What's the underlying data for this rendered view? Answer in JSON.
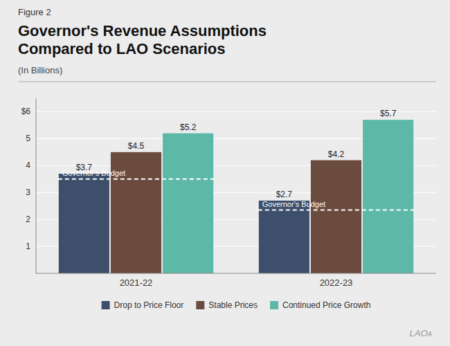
{
  "chart_data": {
    "type": "bar",
    "figure_label": "Figure 2",
    "title": "Governor's Revenue Assumptions\nCompared to LAO Scenarios",
    "subtitle": "(In Billions)",
    "categories": [
      "2021-22",
      "2022-23"
    ],
    "series": [
      {
        "name": "Drop to Price Floor",
        "color": "#3d4f6b",
        "values": [
          3.7,
          2.7
        ],
        "value_labels": [
          "$3.7",
          "$2.7"
        ]
      },
      {
        "name": "Stable Prices",
        "color": "#6b4b3e",
        "values": [
          4.5,
          4.2
        ],
        "value_labels": [
          "$4.5",
          "$4.2"
        ]
      },
      {
        "name": "Continued Price Growth",
        "color": "#5db8a8",
        "values": [
          5.2,
          5.7
        ],
        "value_labels": [
          "$5.2",
          "$5.7"
        ]
      }
    ],
    "reference_lines": {
      "label": "Governor's Budget",
      "color": "#ffffff",
      "values": [
        3.5,
        2.35
      ]
    },
    "ylim": [
      0,
      6.5
    ],
    "yticks": [
      1,
      2,
      3,
      4,
      5,
      {
        "value": 6,
        "label": "$6"
      }
    ],
    "grid": true,
    "data_labels": true,
    "legend": "bottom",
    "watermark": "LAOᴀ"
  }
}
